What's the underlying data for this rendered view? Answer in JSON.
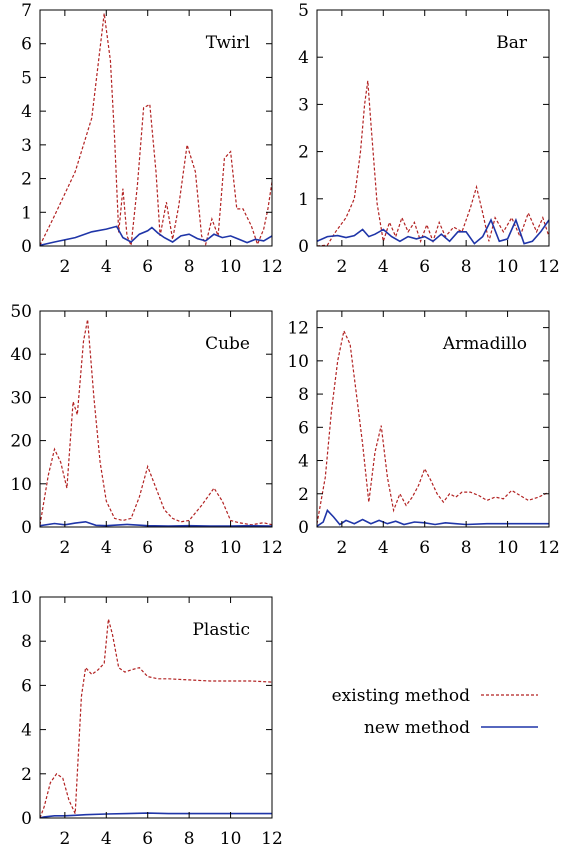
{
  "legend": {
    "placement": "bottom-right",
    "entries": [
      {
        "label": "existing method",
        "color": "#b22222",
        "style": "dashed"
      },
      {
        "label": "new method",
        "color": "#1f35a8",
        "style": "solid"
      }
    ]
  },
  "chart_data": [
    {
      "type": "line",
      "title": "Twirl",
      "xlim": [
        0.8,
        12
      ],
      "ylim": [
        0,
        7
      ],
      "xticks": [
        2,
        4,
        6,
        8,
        10,
        12
      ],
      "yticks": [
        0,
        1,
        2,
        3,
        4,
        5,
        6,
        7
      ],
      "grid": false,
      "series": [
        {
          "name": "existing method",
          "color": "#b22222",
          "x": [
            0.8,
            1.5,
            2.5,
            3.3,
            3.9,
            4.2,
            4.4,
            4.6,
            4.8,
            5.0,
            5.2,
            5.5,
            5.8,
            6.1,
            6.4,
            6.6,
            6.9,
            7.2,
            7.5,
            7.9,
            8.3,
            8.6,
            8.8,
            9.1,
            9.4,
            9.7,
            10.0,
            10.3,
            10.6,
            11.0,
            11.3,
            11.6,
            11.8,
            12.0
          ],
          "y": [
            0.02,
            0.9,
            2.2,
            3.8,
            6.9,
            5.5,
            3.2,
            0.4,
            1.7,
            0.3,
            0.02,
            1.8,
            4.1,
            4.2,
            2.2,
            0.3,
            1.3,
            0.2,
            1.2,
            3.0,
            2.2,
            0.3,
            0.05,
            0.8,
            0.3,
            2.6,
            2.8,
            1.1,
            1.1,
            0.6,
            0.05,
            0.5,
            1.1,
            1.9
          ]
        },
        {
          "name": "new method",
          "color": "#1f35a8",
          "x": [
            0.8,
            1.5,
            2.5,
            3.3,
            4.0,
            4.5,
            4.8,
            5.2,
            5.6,
            6.0,
            6.2,
            6.5,
            6.8,
            7.2,
            7.6,
            8.0,
            8.4,
            8.8,
            9.2,
            9.6,
            10.0,
            10.4,
            10.8,
            11.2,
            11.6,
            12.0
          ],
          "y": [
            0.02,
            0.12,
            0.25,
            0.42,
            0.5,
            0.58,
            0.25,
            0.12,
            0.35,
            0.45,
            0.55,
            0.38,
            0.25,
            0.12,
            0.3,
            0.35,
            0.22,
            0.15,
            0.35,
            0.25,
            0.3,
            0.2,
            0.1,
            0.2,
            0.15,
            0.3
          ]
        }
      ]
    },
    {
      "type": "line",
      "title": "Bar",
      "xlim": [
        0.8,
        12
      ],
      "ylim": [
        0,
        5
      ],
      "xticks": [
        2,
        4,
        6,
        8,
        10,
        12
      ],
      "yticks": [
        0,
        1,
        2,
        3,
        4,
        5
      ],
      "grid": false,
      "series": [
        {
          "name": "existing method",
          "color": "#b22222",
          "x": [
            0.8,
            1.3,
            1.7,
            2.2,
            2.6,
            2.9,
            3.1,
            3.25,
            3.4,
            3.7,
            4.0,
            4.3,
            4.6,
            4.9,
            5.2,
            5.5,
            5.8,
            6.1,
            6.4,
            6.7,
            7.0,
            7.4,
            7.8,
            8.2,
            8.5,
            8.8,
            9.1,
            9.4,
            9.8,
            10.2,
            10.6,
            11.0,
            11.4,
            11.7,
            12.0
          ],
          "y": [
            0.0,
            0.02,
            0.3,
            0.6,
            1.0,
            2.0,
            3.0,
            3.5,
            2.6,
            0.9,
            0.1,
            0.5,
            0.2,
            0.6,
            0.3,
            0.5,
            0.1,
            0.45,
            0.1,
            0.5,
            0.2,
            0.4,
            0.3,
            0.8,
            1.25,
            0.7,
            0.1,
            0.6,
            0.3,
            0.6,
            0.2,
            0.7,
            0.3,
            0.6,
            0.2
          ]
        },
        {
          "name": "new method",
          "color": "#1f35a8",
          "x": [
            0.8,
            1.3,
            1.8,
            2.2,
            2.6,
            3.0,
            3.3,
            3.6,
            4.0,
            4.4,
            4.8,
            5.2,
            5.6,
            6.0,
            6.4,
            6.8,
            7.2,
            7.6,
            8.0,
            8.4,
            8.8,
            9.2,
            9.6,
            10.0,
            10.4,
            10.8,
            11.2,
            11.6,
            12.0
          ],
          "y": [
            0.1,
            0.2,
            0.22,
            0.18,
            0.22,
            0.35,
            0.2,
            0.25,
            0.35,
            0.2,
            0.1,
            0.2,
            0.15,
            0.2,
            0.1,
            0.25,
            0.1,
            0.3,
            0.3,
            0.05,
            0.2,
            0.55,
            0.1,
            0.15,
            0.55,
            0.05,
            0.1,
            0.3,
            0.55
          ]
        }
      ]
    },
    {
      "type": "line",
      "title": "Cube",
      "xlim": [
        0.8,
        12
      ],
      "ylim": [
        0,
        50
      ],
      "xticks": [
        2,
        4,
        6,
        8,
        10,
        12
      ],
      "yticks": [
        0,
        10,
        20,
        30,
        40,
        50
      ],
      "grid": false,
      "series": [
        {
          "name": "existing method",
          "color": "#b22222",
          "x": [
            0.8,
            1.2,
            1.5,
            1.8,
            2.1,
            2.4,
            2.6,
            2.9,
            3.1,
            3.4,
            3.7,
            4.0,
            4.4,
            4.8,
            5.2,
            5.6,
            6.0,
            6.4,
            6.8,
            7.2,
            7.6,
            8.0,
            8.6,
            9.2,
            9.6,
            10.0,
            10.4,
            11.0,
            11.6,
            12.0
          ],
          "y": [
            0.5,
            12,
            18,
            15,
            9,
            29,
            26,
            43,
            48,
            30,
            15,
            6,
            2,
            1.5,
            2,
            7,
            14,
            9,
            4,
            2,
            1.2,
            1.5,
            5,
            9,
            6,
            1.5,
            1,
            0.5,
            1,
            0.5
          ]
        },
        {
          "name": "new method",
          "color": "#1f35a8",
          "x": [
            0.8,
            1.5,
            2.0,
            2.5,
            3.0,
            3.5,
            4.0,
            5.0,
            6.0,
            7.0,
            8.0,
            9.0,
            10.0,
            11.0,
            12.0
          ],
          "y": [
            0.3,
            0.8,
            0.5,
            0.9,
            1.2,
            0.4,
            0.3,
            0.6,
            0.3,
            0.2,
            0.3,
            0.2,
            0.2,
            0.3,
            0.2
          ]
        }
      ]
    },
    {
      "type": "line",
      "title": "Armadillo",
      "xlim": [
        0.8,
        12
      ],
      "ylim": [
        0,
        13
      ],
      "xticks": [
        2,
        4,
        6,
        8,
        10,
        12
      ],
      "yticks": [
        0,
        2,
        4,
        6,
        8,
        10,
        12
      ],
      "grid": false,
      "series": [
        {
          "name": "existing method",
          "color": "#b22222",
          "x": [
            0.8,
            1.2,
            1.5,
            1.8,
            2.1,
            2.4,
            2.7,
            3.0,
            3.3,
            3.6,
            3.9,
            4.2,
            4.5,
            4.8,
            5.1,
            5.4,
            5.7,
            6.0,
            6.3,
            6.6,
            6.9,
            7.2,
            7.5,
            7.8,
            8.2,
            8.6,
            9.0,
            9.4,
            9.8,
            10.2,
            10.6,
            11.0,
            11.5,
            12.0
          ],
          "y": [
            0.2,
            3,
            7,
            10,
            11.8,
            11.0,
            8,
            5,
            1.5,
            4.5,
            6.1,
            3,
            1,
            2,
            1.3,
            1.8,
            2.5,
            3.5,
            2.8,
            2.0,
            1.5,
            2.0,
            1.8,
            2.1,
            2.1,
            1.9,
            1.6,
            1.8,
            1.7,
            2.2,
            1.9,
            1.6,
            1.8,
            2.1
          ]
        },
        {
          "name": "new method",
          "color": "#1f35a8",
          "x": [
            0.8,
            1.1,
            1.3,
            1.6,
            1.9,
            2.2,
            2.6,
            3.0,
            3.4,
            3.8,
            4.2,
            4.6,
            5.0,
            5.5,
            6.0,
            6.5,
            7.0,
            7.5,
            8.0,
            9.0,
            10.0,
            11.0,
            12.0
          ],
          "y": [
            0.05,
            0.3,
            1.0,
            0.6,
            0.15,
            0.4,
            0.2,
            0.45,
            0.2,
            0.4,
            0.2,
            0.35,
            0.15,
            0.3,
            0.25,
            0.15,
            0.25,
            0.2,
            0.15,
            0.2,
            0.2,
            0.2,
            0.2
          ]
        }
      ]
    },
    {
      "type": "line",
      "title": "Plastic",
      "xlim": [
        0.8,
        12
      ],
      "ylim": [
        0,
        10
      ],
      "xticks": [
        2,
        4,
        6,
        8,
        10,
        12
      ],
      "yticks": [
        0,
        2,
        4,
        6,
        8,
        10
      ],
      "grid": false,
      "series": [
        {
          "name": "existing method",
          "color": "#b22222",
          "x": [
            0.8,
            1.0,
            1.3,
            1.6,
            1.9,
            2.2,
            2.5,
            2.8,
            3.0,
            3.3,
            3.6,
            3.9,
            4.1,
            4.3,
            4.6,
            4.9,
            5.2,
            5.6,
            6.0,
            6.5,
            7.0,
            8.0,
            9.0,
            10.0,
            11.0,
            12.0
          ],
          "y": [
            0.0,
            0.5,
            1.6,
            2.0,
            1.8,
            0.8,
            0.2,
            5.5,
            6.8,
            6.5,
            6.7,
            7.0,
            9.0,
            8.3,
            6.8,
            6.6,
            6.7,
            6.8,
            6.4,
            6.3,
            6.3,
            6.25,
            6.2,
            6.2,
            6.2,
            6.15
          ]
        },
        {
          "name": "new method",
          "color": "#1f35a8",
          "x": [
            0.8,
            1.0,
            1.5,
            2.0,
            2.5,
            3.0,
            4.0,
            5.0,
            6.0,
            7.0,
            8.0,
            10.0,
            12.0
          ],
          "y": [
            0.0,
            0.05,
            0.1,
            0.1,
            0.12,
            0.15,
            0.18,
            0.2,
            0.22,
            0.2,
            0.2,
            0.2,
            0.2
          ]
        }
      ]
    }
  ]
}
